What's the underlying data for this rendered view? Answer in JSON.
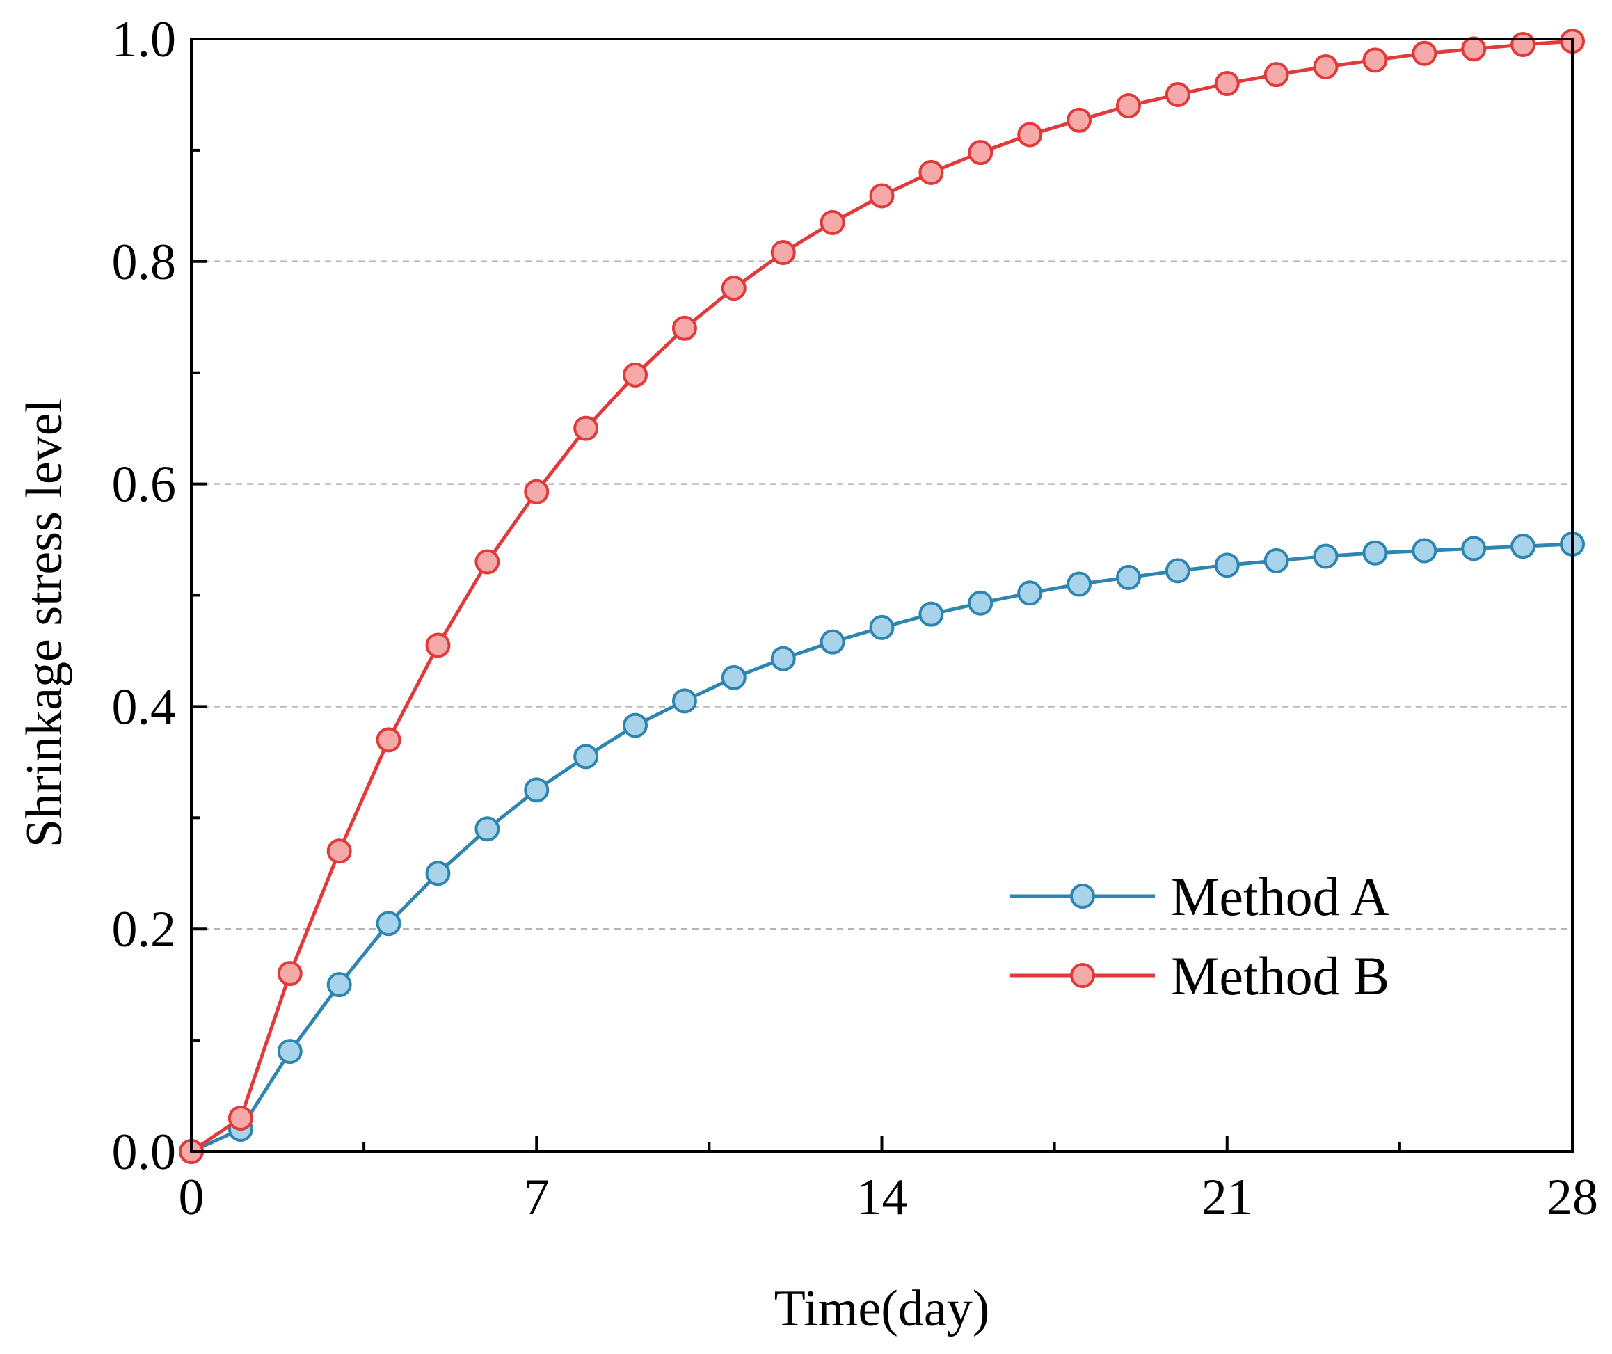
{
  "chart_data": {
    "type": "line",
    "title": "",
    "xlabel": "Time(day)",
    "ylabel": "Shrinkage stress level",
    "xlim": [
      0,
      28
    ],
    "ylim": [
      0,
      1.0
    ],
    "xticks": [
      0,
      7,
      14,
      21,
      28
    ],
    "xtick_labels": [
      "0",
      "7",
      "14",
      "21",
      "28"
    ],
    "yticks": [
      0.0,
      0.2,
      0.4,
      0.6,
      0.8,
      1.0
    ],
    "ytick_labels": [
      "0.0",
      "0.2",
      "0.4",
      "0.6",
      "0.8",
      "1.0"
    ],
    "grid": "horizontal dashed",
    "legend_position": "bottom-right",
    "series": [
      {
        "name": "Method A",
        "color": "#2e86b0",
        "marker_fill": "#a9d3ea",
        "x": [
          0,
          1,
          2,
          3,
          4,
          5,
          6,
          7,
          8,
          9,
          10,
          11,
          12,
          13,
          14,
          15,
          16,
          17,
          18,
          19,
          20,
          21,
          22,
          23,
          24,
          25,
          26,
          27,
          28
        ],
        "values": [
          0.0,
          0.02,
          0.09,
          0.15,
          0.205,
          0.25,
          0.29,
          0.325,
          0.355,
          0.383,
          0.405,
          0.426,
          0.443,
          0.458,
          0.471,
          0.483,
          0.493,
          0.502,
          0.51,
          0.516,
          0.522,
          0.527,
          0.531,
          0.535,
          0.538,
          0.54,
          0.542,
          0.544,
          0.546
        ]
      },
      {
        "name": "Method B",
        "color": "#e03a3a",
        "marker_fill": "#f6a9a9",
        "x": [
          0,
          1,
          2,
          3,
          4,
          5,
          6,
          7,
          8,
          9,
          10,
          11,
          12,
          13,
          14,
          15,
          16,
          17,
          18,
          19,
          20,
          21,
          22,
          23,
          24,
          25,
          26,
          27,
          28
        ],
        "values": [
          0.0,
          0.03,
          0.16,
          0.27,
          0.37,
          0.455,
          0.53,
          0.593,
          0.65,
          0.698,
          0.74,
          0.776,
          0.808,
          0.835,
          0.859,
          0.88,
          0.898,
          0.914,
          0.927,
          0.94,
          0.95,
          0.96,
          0.968,
          0.975,
          0.981,
          0.987,
          0.991,
          0.995,
          0.998
        ]
      }
    ]
  }
}
